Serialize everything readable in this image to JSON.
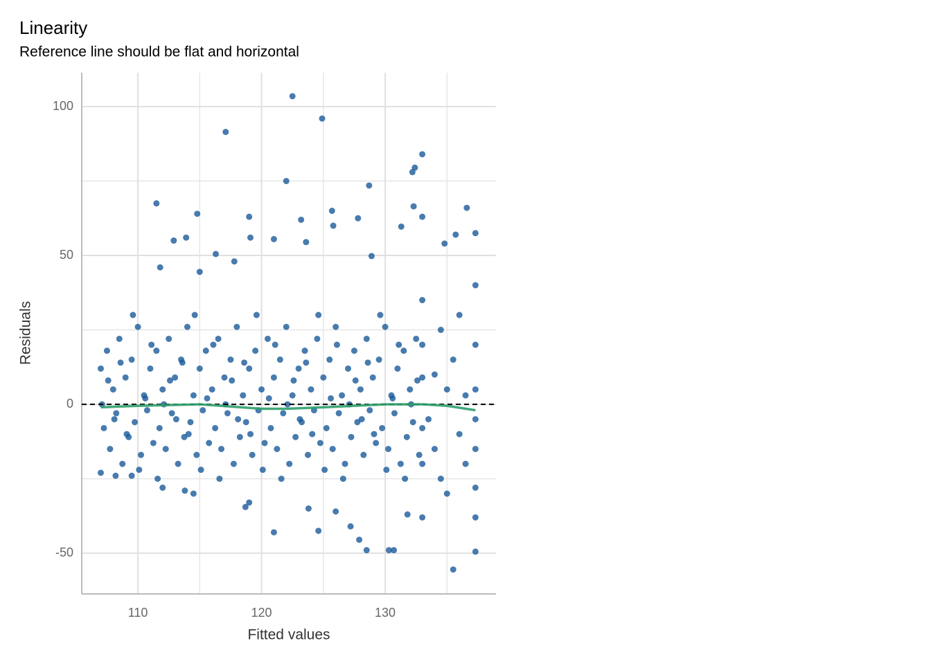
{
  "chart_data": {
    "type": "scatter",
    "title": "Linearity",
    "subtitle": "Reference line should be flat and horizontal",
    "xlabel": "Fitted values",
    "ylabel": "Residuals",
    "xlim": [
      105.46,
      138.96
    ],
    "ylim": [
      -63.7,
      111.4
    ],
    "xticks": [
      110,
      120,
      130
    ],
    "yticks": [
      -50,
      0,
      50,
      100
    ],
    "xminor": [
      115,
      125,
      135
    ],
    "yminor": [
      -25,
      25,
      75
    ],
    "grid": true,
    "color": "#1a5a9a",
    "reference_line": 0,
    "smooth": {
      "color": "#2e9e6a",
      "x": [
        107,
        110,
        115,
        120,
        122,
        125,
        130,
        133,
        135,
        137.3
      ],
      "y": [
        -1,
        -0.5,
        0,
        -1.5,
        -1.5,
        -1,
        0,
        0,
        -0.5,
        -2
      ]
    },
    "x": [
      122.5,
      124.9,
      117.1,
      133,
      132.4,
      132.2,
      122,
      128.7,
      111.5,
      132.3,
      136.6,
      125.7,
      114.8,
      119,
      133,
      127.8,
      123.2,
      125.8,
      131.3,
      137.3,
      135.7,
      116.3,
      112.9,
      113.9,
      119.1,
      121,
      123.6,
      134.8,
      128.9,
      111.8,
      117.8,
      115,
      135.5,
      130.3,
      130.7,
      128.5,
      121,
      124.6,
      127.9,
      127.2,
      137.3,
      123.8,
      119,
      118.7,
      114.5,
      113.8,
      107,
      108.2,
      109.5,
      112,
      126,
      131.8,
      133,
      107,
      107.5,
      108,
      108.5,
      109,
      109.5,
      110,
      110.5,
      111,
      111.5,
      112,
      112.5,
      113,
      113.5,
      114,
      114.5,
      115,
      115.5,
      116,
      116.5,
      117,
      117.5,
      118,
      118.5,
      119,
      119.5,
      120,
      120.5,
      121,
      121.5,
      122,
      122.5,
      123,
      123.5,
      124,
      124.5,
      125,
      125.5,
      126,
      126.5,
      127,
      127.5,
      128,
      128.5,
      129,
      129.5,
      130,
      130.5,
      131,
      131.5,
      132,
      132.5,
      133,
      107.25,
      107.75,
      108.25,
      108.75,
      109.25,
      109.75,
      110.25,
      110.75,
      111.25,
      111.75,
      112.25,
      112.75,
      113.25,
      113.75,
      114.25,
      114.75,
      115.25,
      115.75,
      116.25,
      116.75,
      117.25,
      117.75,
      118.25,
      118.75,
      119.25,
      119.75,
      120.25,
      120.75,
      121.25,
      121.75,
      122.25,
      122.75,
      123.25,
      123.75,
      124.25,
      124.75,
      125.25,
      125.75,
      126.25,
      126.75,
      127.25,
      127.75,
      128.25,
      128.75,
      129.25,
      129.75,
      130.25,
      130.75,
      131.25,
      131.75,
      132.25,
      132.75,
      107.1,
      107.6,
      108.1,
      108.6,
      109.1,
      109.6,
      110.1,
      110.6,
      111.1,
      111.6,
      112.1,
      112.6,
      113.1,
      113.6,
      114.1,
      114.6,
      115.1,
      115.6,
      116.1,
      116.6,
      117.1,
      117.6,
      118.1,
      118.6,
      119.1,
      119.6,
      120.1,
      120.6,
      121.1,
      121.6,
      122.1,
      122.6,
      123.1,
      123.6,
      124.1,
      124.6,
      125.1,
      125.6,
      126.1,
      126.6,
      127.1,
      127.6,
      128.1,
      128.6,
      129.1,
      129.6,
      130.1,
      130.6,
      131.1,
      131.6,
      132.1,
      132.6,
      133.5,
      134,
      134,
      134.5,
      134.5,
      135,
      135,
      135.5,
      136,
      136,
      136.5,
      136.5,
      137.3,
      137.3,
      137.3,
      137.3,
      137.3,
      137.3,
      137.3,
      133,
      133,
      133,
      133
    ],
    "y": [
      103.5,
      96,
      91.5,
      84,
      79.5,
      78,
      75,
      73.5,
      67.5,
      66.5,
      66,
      65,
      64,
      63,
      63,
      62.5,
      62,
      60,
      59.7,
      57.5,
      57,
      50.5,
      55,
      56,
      56,
      55.5,
      54.5,
      54,
      49.8,
      46,
      48,
      44.5,
      -55.5,
      -49,
      -49,
      -49,
      -43,
      -42.5,
      -45.5,
      -41,
      -49.5,
      -35,
      -33,
      -34.5,
      -30,
      -29,
      -23,
      -24,
      -24,
      -28,
      -36,
      -37,
      -38,
      12,
      18,
      5,
      22,
      9,
      15,
      26,
      3,
      12,
      18,
      5,
      22,
      9,
      15,
      26,
      3,
      12,
      18,
      5,
      22,
      9,
      15,
      26,
      3,
      12,
      18,
      5,
      22,
      9,
      15,
      26,
      3,
      12,
      18,
      5,
      22,
      9,
      15,
      26,
      3,
      12,
      18,
      5,
      22,
      9,
      15,
      26,
      3,
      12,
      18,
      5,
      22,
      9,
      -8,
      -15,
      -3,
      -20,
      -11,
      -6,
      -17,
      -2,
      -13,
      -8,
      -15,
      -3,
      -20,
      -11,
      -6,
      -17,
      -2,
      -13,
      -8,
      -15,
      -3,
      -20,
      -11,
      -6,
      -17,
      -2,
      -13,
      -8,
      -15,
      -3,
      -20,
      -11,
      -6,
      -17,
      -2,
      -13,
      -8,
      -15,
      -3,
      -20,
      -11,
      -6,
      -17,
      -2,
      -13,
      -8,
      -15,
      -3,
      -20,
      -11,
      -6,
      -17,
      0,
      8,
      -5,
      14,
      -10,
      30,
      -22,
      2,
      20,
      -25,
      0,
      8,
      -5,
      14,
      -10,
      30,
      -22,
      2,
      20,
      -25,
      0,
      8,
      -5,
      14,
      -10,
      30,
      -22,
      2,
      20,
      -25,
      0,
      8,
      -5,
      14,
      -10,
      30,
      -22,
      2,
      20,
      -25,
      0,
      8,
      -5,
      14,
      -10,
      30,
      -22,
      2,
      20,
      -25,
      0,
      8,
      -5,
      10,
      -15,
      25,
      -25,
      5,
      -30,
      15,
      -10,
      30,
      -20,
      3,
      40,
      20,
      5,
      -5,
      -15,
      -28,
      -38,
      35,
      -20,
      20,
      -8
    ]
  }
}
